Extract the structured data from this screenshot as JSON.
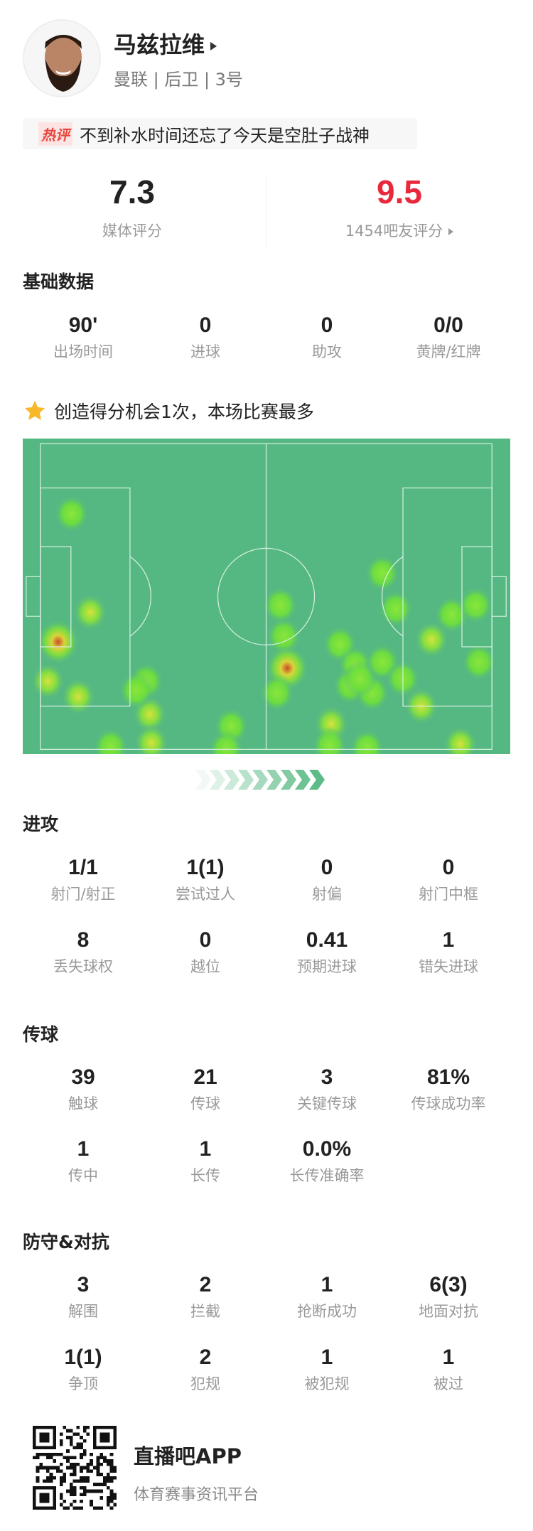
{
  "player": {
    "name": "马兹拉维",
    "subtitle": "曼联 | 后卫 | 3号"
  },
  "hot_comment": {
    "badge": "热评",
    "text": "不到补水时间还忘了今天是空肚子战神"
  },
  "ratings": {
    "media_value": "7.3",
    "media_label": "媒体评分",
    "fan_value": "9.5",
    "fan_label": "1454吧友评分",
    "fan_color": "#e8283c"
  },
  "basic": {
    "title": "基础数据",
    "stats": [
      {
        "v": "90'",
        "l": "出场时间"
      },
      {
        "v": "0",
        "l": "进球"
      },
      {
        "v": "0",
        "l": "助攻"
      },
      {
        "v": "0/0",
        "l": "黄牌/红牌"
      }
    ]
  },
  "highlight": {
    "icon": "star-icon",
    "text": "创造得分机会1次，本场比赛最多"
  },
  "attack": {
    "title": "进攻",
    "stats": [
      {
        "v": "1/1",
        "l": "射门/射正"
      },
      {
        "v": "1(1)",
        "l": "尝试过人"
      },
      {
        "v": "0",
        "l": "射偏"
      },
      {
        "v": "0",
        "l": "射门中框"
      },
      {
        "v": "8",
        "l": "丢失球权"
      },
      {
        "v": "0",
        "l": "越位"
      },
      {
        "v": "0.41",
        "l": "预期进球"
      },
      {
        "v": "1",
        "l": "错失进球"
      }
    ]
  },
  "passing": {
    "title": "传球",
    "stats": [
      {
        "v": "39",
        "l": "触球"
      },
      {
        "v": "21",
        "l": "传球"
      },
      {
        "v": "3",
        "l": "关键传球"
      },
      {
        "v": "81%",
        "l": "传球成功率"
      },
      {
        "v": "1",
        "l": "传中"
      },
      {
        "v": "1",
        "l": "长传"
      },
      {
        "v": "0.0%",
        "l": "长传准确率"
      }
    ]
  },
  "defense": {
    "title": "防守&对抗",
    "stats": [
      {
        "v": "3",
        "l": "解围"
      },
      {
        "v": "2",
        "l": "拦截"
      },
      {
        "v": "1",
        "l": "抢断成功"
      },
      {
        "v": "6(3)",
        "l": "地面对抗"
      },
      {
        "v": "1(1)",
        "l": "争顶"
      },
      {
        "v": "2",
        "l": "犯规"
      },
      {
        "v": "1",
        "l": "被犯规"
      },
      {
        "v": "1",
        "l": "被过"
      }
    ]
  },
  "footer": {
    "app_name": "直播吧APP",
    "tagline": "体育赛事资讯平台"
  }
}
